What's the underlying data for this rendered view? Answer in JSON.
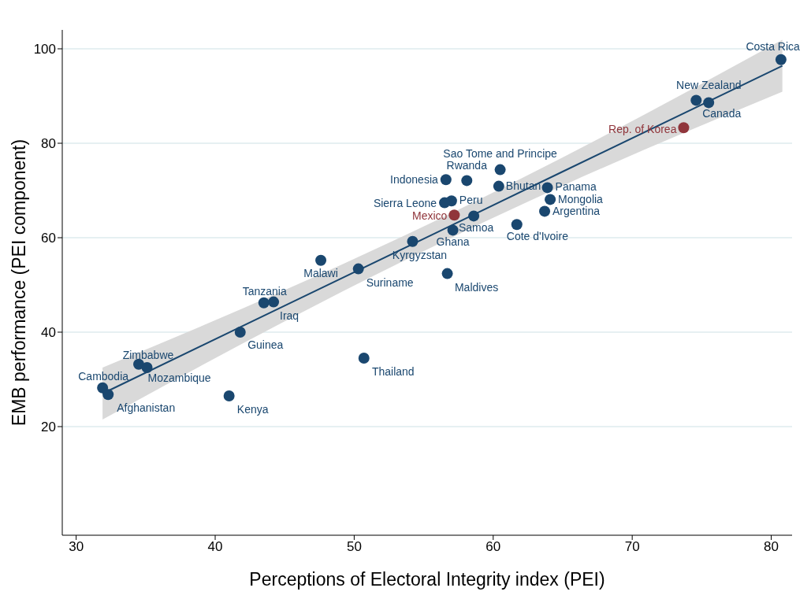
{
  "chart_data": {
    "type": "scatter",
    "xlabel": "Perceptions of Electoral Integrity index (PEI)",
    "ylabel": "EMB performance (PEI component)",
    "xlim": [
      29,
      81.5
    ],
    "ylim": [
      -3,
      104
    ],
    "xticks": [
      30,
      40,
      50,
      60,
      70,
      80
    ],
    "yticks": [
      20,
      40,
      60,
      80,
      100
    ],
    "grid": "y",
    "marker": "circle",
    "series": [
      {
        "color": "#1a476f",
        "x": [
          80.7,
          74.6,
          75.5,
          60.5,
          56.6,
          57.0,
          60.4,
          63.9,
          64.1,
          63.7,
          61.7,
          56.5,
          58.1,
          58.6,
          57.1,
          54.2,
          56.7,
          47.6,
          50.3,
          43.5,
          44.2,
          41.8,
          50.7,
          34.5,
          35.1,
          31.9,
          32.3,
          41.0
        ],
        "values": [
          97.7,
          89.1,
          88.6,
          74.4,
          72.3,
          67.8,
          70.9,
          70.6,
          68.1,
          65.6,
          62.8,
          67.4,
          72.1,
          64.6,
          61.6,
          59.2,
          52.4,
          55.2,
          53.4,
          46.2,
          46.4,
          40.0,
          34.5,
          33.2,
          32.5,
          28.2,
          26.8,
          26.5
        ],
        "value_labels": [
          "Costa Rica",
          "New Zealand",
          "Canada",
          "Sao Tome and Principe",
          "Indonesia",
          "Peru",
          "Bhutan",
          "Panama",
          "Mongolia",
          "Argentina",
          "Cote d'Ivoire",
          "Sierra Leone",
          "Rwanda",
          "Samoa",
          "Ghana",
          "Kyrgyzstan",
          "Maldives",
          "Malawi",
          "Suriname",
          "Tanzania",
          "Iraq",
          "Guinea",
          "Thailand",
          "Zimbabwe",
          "Mozambique",
          "Cambodia",
          "Afghanistan",
          "Kenya"
        ]
      },
      {
        "color": "#90353b",
        "x": [
          73.7,
          57.2
        ],
        "values": [
          83.3,
          64.8
        ],
        "value_labels": [
          "Rep. of Korea",
          "Mexico"
        ]
      },
      {
        "type": "line",
        "color": "#1a476f",
        "marker": "none",
        "x": [
          31.9,
          45,
          56,
          65,
          80.8
        ],
        "values": [
          27.0,
          45.6,
          61.2,
          74.0,
          96.4
        ],
        "lower": [
          21.5,
          42.3,
          58.6,
          71.0,
          90.9
        ],
        "upper": [
          32.5,
          48.9,
          63.8,
          77.0,
          101.9
        ]
      }
    ]
  }
}
